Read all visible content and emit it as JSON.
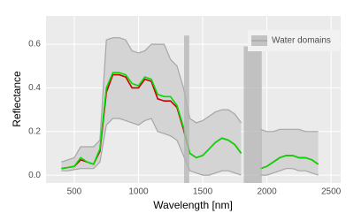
{
  "chart_data": {
    "type": "line",
    "xlabel": "Wavelength [nm]",
    "ylabel": "Reflectance",
    "x": [
      400,
      450,
      500,
      550,
      600,
      650,
      700,
      750,
      800,
      850,
      900,
      950,
      1000,
      1050,
      1100,
      1150,
      1200,
      1250,
      1300,
      1350,
      1400,
      1450,
      1500,
      1550,
      1600,
      1650,
      1700,
      1750,
      1800,
      1850,
      1900,
      1950,
      2000,
      2050,
      2100,
      2150,
      2200,
      2250,
      2300,
      2350,
      2400
    ],
    "series": [
      {
        "color": "#a6a6a6",
        "values": [
          0.06,
          0.07,
          0.08,
          0.13,
          0.13,
          0.13,
          0.16,
          0.62,
          0.63,
          0.63,
          0.62,
          0.57,
          0.56,
          0.57,
          0.6,
          0.6,
          0.6,
          0.53,
          0.5,
          0.4,
          0.26,
          0.24,
          0.25,
          0.27,
          0.29,
          0.3,
          0.3,
          0.28,
          0.24,
          null,
          null,
          0.21,
          0.2,
          0.2,
          0.21,
          0.21,
          0.21,
          0.21,
          0.2,
          0.2,
          0.2
        ]
      },
      {
        "color": "#a6a6a6",
        "values": [
          0.02,
          0.02,
          0.025,
          0.03,
          0.03,
          0.03,
          0.06,
          0.23,
          0.26,
          0.26,
          0.25,
          0.24,
          0.23,
          0.25,
          0.26,
          0.2,
          0.19,
          0.18,
          0.16,
          0.09,
          0.02,
          0.01,
          0.0,
          0.0,
          0.01,
          0.02,
          0.02,
          0.01,
          0.0,
          null,
          null,
          0.0,
          0.0,
          0.01,
          0.02,
          0.03,
          0.03,
          0.02,
          0.02,
          0.01,
          0.0
        ]
      },
      {
        "color": "#cc0000",
        "values": [
          0.03,
          0.035,
          0.04,
          0.07,
          0.06,
          0.05,
          0.11,
          0.38,
          0.46,
          0.46,
          0.45,
          0.4,
          0.4,
          0.44,
          0.43,
          0.35,
          0.34,
          0.34,
          0.31,
          0.21,
          0.1,
          0.08,
          0.09,
          0.12,
          0.15,
          0.17,
          0.16,
          0.14,
          0.1,
          null,
          null,
          0.03,
          0.04,
          0.06,
          0.08,
          0.09,
          0.09,
          0.08,
          0.08,
          0.07,
          0.05
        ]
      },
      {
        "color": "#00dd00",
        "values": [
          0.03,
          0.035,
          0.04,
          0.08,
          0.06,
          0.05,
          0.12,
          0.4,
          0.47,
          0.47,
          0.46,
          0.42,
          0.41,
          0.45,
          0.44,
          0.37,
          0.36,
          0.36,
          0.32,
          0.22,
          0.1,
          0.08,
          0.09,
          0.12,
          0.15,
          0.17,
          0.16,
          0.14,
          0.1,
          null,
          null,
          0.03,
          0.04,
          0.06,
          0.08,
          0.09,
          0.09,
          0.08,
          0.08,
          0.07,
          0.05
        ]
      }
    ],
    "water_domains": {
      "name": "Water domains",
      "color": "#b3b3b3",
      "bands": [
        {
          "from": 1355,
          "to": 1395,
          "top": 0.64
        },
        {
          "from": 1820,
          "to": 1960,
          "top": 0.59
        }
      ]
    },
    "xlim": [
      280,
      2575
    ],
    "ylim": [
      -0.036,
      0.73
    ],
    "xticks": [
      500,
      1000,
      1500,
      2000,
      2500
    ],
    "yticks": [
      {
        "value": 0,
        "label": "0.0"
      },
      {
        "value": 0.2,
        "label": "0.2"
      },
      {
        "value": 0.4,
        "label": "0.4"
      },
      {
        "value": 0.6,
        "label": "0.6"
      }
    ],
    "grid": true,
    "legend": "top-right"
  }
}
